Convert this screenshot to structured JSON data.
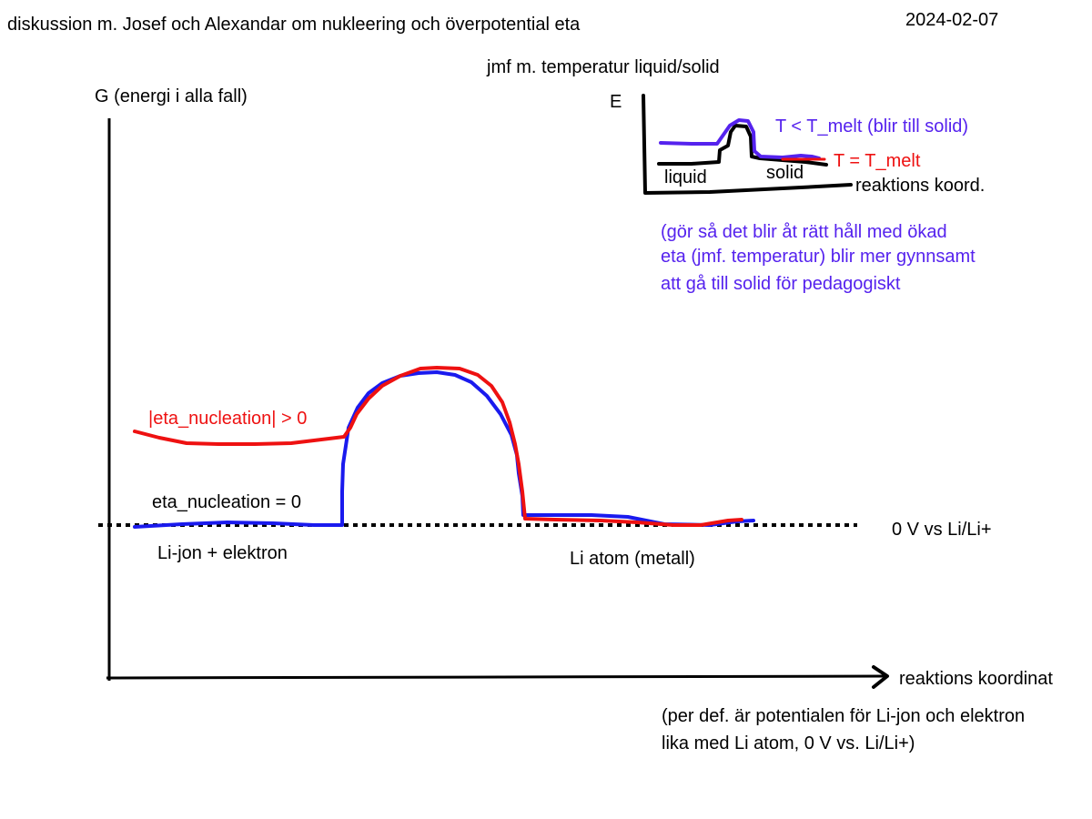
{
  "header": {
    "title": "diskussion m. Josef och Alexandar om nukleering och överpotential eta",
    "date": "2024-02-07"
  },
  "main": {
    "y_axis_label": "G  (energi i alla fall)",
    "x_axis_label": "reaktions koordinat",
    "baseline_label": "0 V vs Li/Li+",
    "red_curve_label": "|eta_nucleation| > 0",
    "blue_curve_label": "eta_nucleation = 0",
    "left_state_label": "Li-jon  +  elektron",
    "right_state_label": "Li atom  (metall)",
    "footnote": [
      "(per def. är potentialen för Li-jon och elektron",
      "lika med Li atom, 0 V vs. Li/Li+)"
    ]
  },
  "inset": {
    "caption": "jmf m. temperatur liquid/solid",
    "y_axis_label": "E",
    "x_axis_label": "reaktions koord.",
    "liquid_label": "liquid",
    "solid_label": "solid",
    "purple_curve_label": "T < T_melt (blir till solid)",
    "red_curve_label": "T = T_melt",
    "note": [
      "(gör så det blir åt rätt håll med ökad",
      "eta (jmf. temperatur) blir mer gynnsamt",
      "att gå till solid för pedagogiskt"
    ]
  },
  "colors": {
    "ink": "#000000",
    "blue": "#1a1aee",
    "red": "#ee1111",
    "purple": "#5522ee"
  }
}
